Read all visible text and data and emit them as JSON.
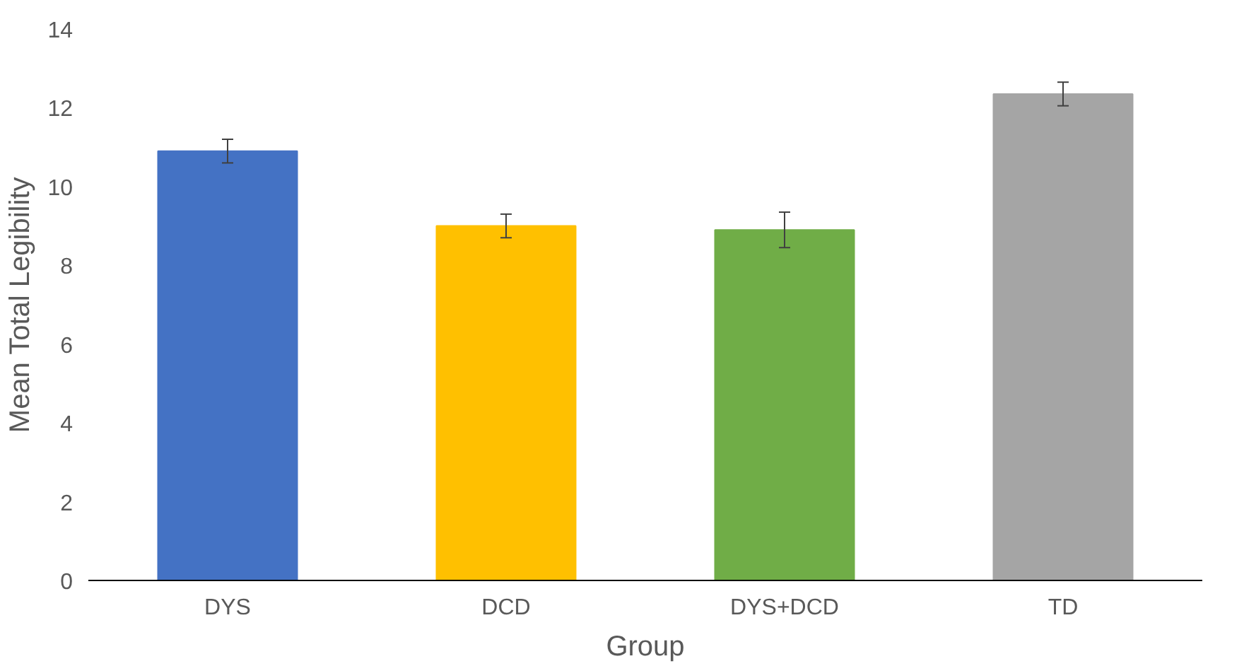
{
  "chart_data": {
    "type": "bar",
    "xlabel": "Group",
    "ylabel": "Mean Total Legibility",
    "categories": [
      "DYS",
      "DCD",
      "DYS+DCD",
      "TD"
    ],
    "values": [
      10.9,
      9.0,
      8.9,
      12.35
    ],
    "colors": [
      "#4472c4",
      "#ffc000",
      "#70ad47",
      "#a5a5a5"
    ],
    "errors": [
      0.3,
      0.3,
      0.45,
      0.3
    ],
    "ylim": [
      0,
      14
    ],
    "yticks": [
      0,
      2,
      4,
      6,
      8,
      10,
      12,
      14
    ],
    "grid": false
  }
}
